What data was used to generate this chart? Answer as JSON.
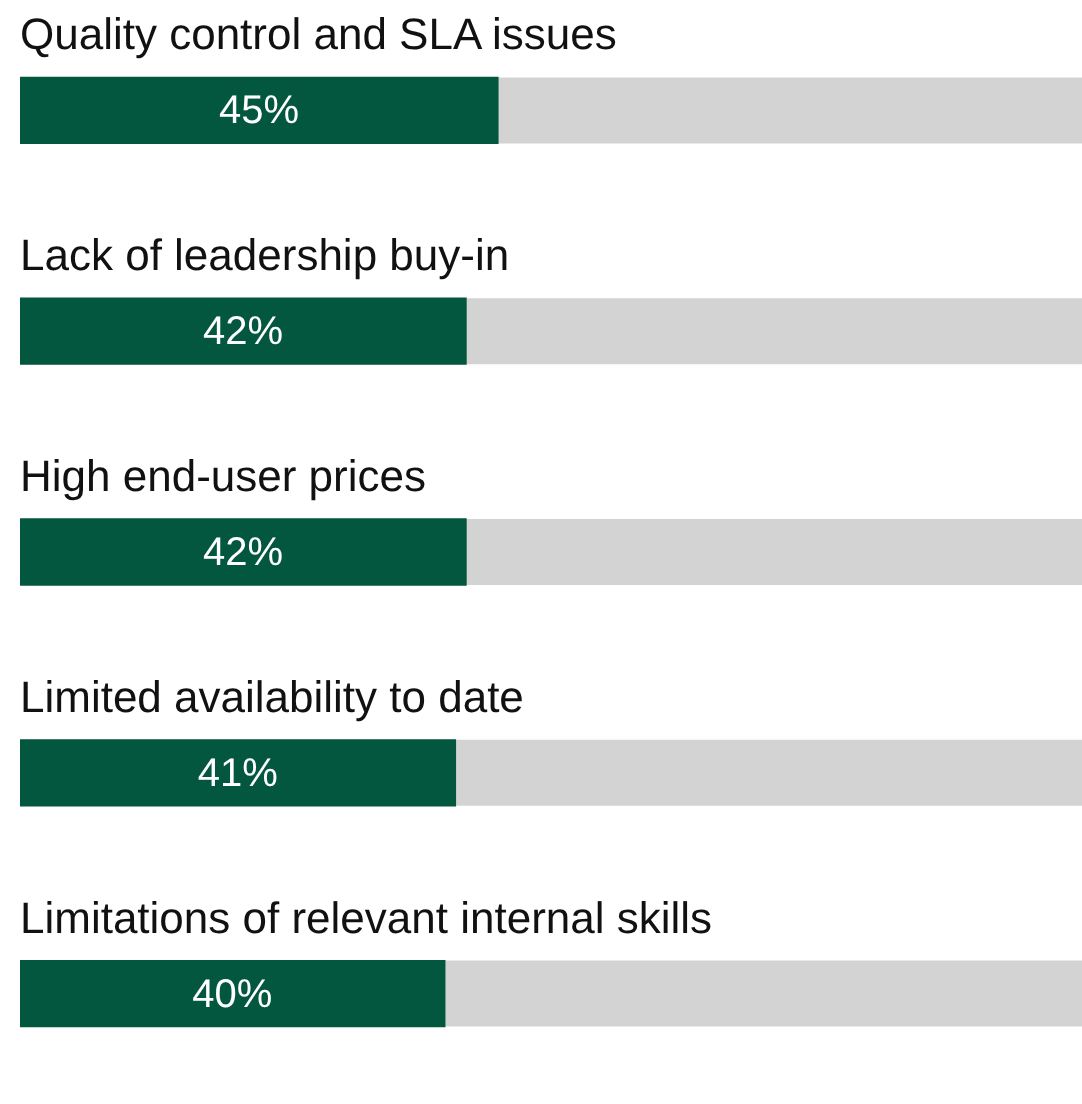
{
  "chart_data": {
    "type": "bar",
    "orientation": "horizontal",
    "categories": [
      "Quality control and SLA issues",
      "Lack of leadership buy-in",
      "High end-user prices",
      "Limited availability to date",
      "Limitations of relevant internal skills"
    ],
    "series": [
      {
        "color": "#03573f",
        "values": [
          45,
          42,
          42,
          41,
          40
        ],
        "value_labels": [
          "45%",
          "42%",
          "42%",
          "41%",
          "40%"
        ]
      }
    ],
    "xlim": [
      0,
      100
    ],
    "tick_labels": false
  }
}
